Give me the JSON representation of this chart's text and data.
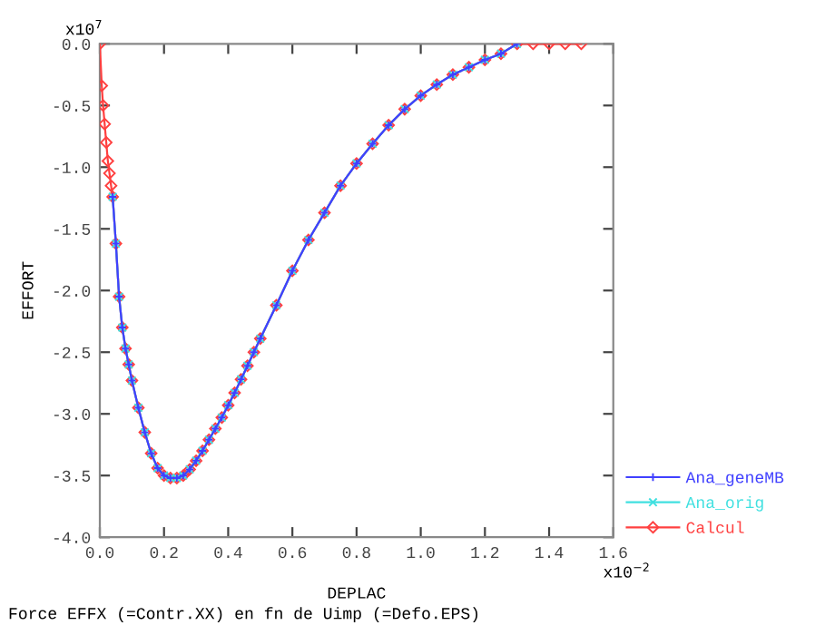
{
  "chart_data": {
    "type": "line",
    "xlabel": "DEPLAC",
    "ylabel": "EFFORT",
    "annotations": [
      "x10$^{7}$",
      "x10$^{−2}$",
      "Force EFFX (=Contr.XX) en fn de Uimp (=Defo.EPS)"
    ],
    "xlim": [
      0,
      1.6
    ],
    "xticks": [
      {
        "value": 0,
        "label": "0.0"
      },
      {
        "value": 0.2,
        "label": "0.2"
      },
      {
        "value": 0.4,
        "label": "0.4"
      },
      {
        "value": 0.6,
        "label": "0.6"
      },
      {
        "value": 0.8,
        "label": "0.8"
      },
      {
        "value": 1.0,
        "label": "1.0"
      },
      {
        "value": 1.2,
        "label": "1.2"
      },
      {
        "value": 1.4,
        "label": "1.4"
      },
      {
        "value": 1.6,
        "label": "1.6"
      }
    ],
    "ylim": [
      -4,
      0
    ],
    "yticks": [
      {
        "value": -4,
        "label": "-4.0"
      },
      {
        "value": -3.5,
        "label": "-3.5"
      },
      {
        "value": -3,
        "label": "-3.0"
      },
      {
        "value": -2.5,
        "label": "-2.5"
      },
      {
        "value": -2,
        "label": "-2.0"
      },
      {
        "value": -1.5,
        "label": "-1.5"
      },
      {
        "value": -1,
        "label": "-1.0"
      },
      {
        "value": -0.5,
        "label": "-0.5"
      },
      {
        "value": 0,
        "label": "0.0"
      }
    ],
    "grid": false,
    "legend": "right",
    "line_style": "solid",
    "series": [
      {
        "name": "Ana_geneMB",
        "color": "#4040ff",
        "marker": "cross",
        "x": [
          0.04,
          0.05,
          0.06,
          0.07,
          0.08,
          0.09,
          0.1,
          0.12,
          0.14,
          0.16,
          0.18,
          0.2,
          0.22,
          0.24,
          0.26,
          0.28,
          0.3,
          0.32,
          0.34,
          0.36,
          0.38,
          0.4,
          0.42,
          0.44,
          0.46,
          0.48,
          0.5,
          0.55,
          0.6,
          0.65,
          0.7,
          0.75,
          0.8,
          0.85,
          0.9,
          0.95,
          1.0,
          1.05,
          1.1,
          1.15,
          1.2,
          1.25,
          1.3
        ],
        "values": [
          -1.24,
          -1.62,
          -2.05,
          -2.3,
          -2.47,
          -2.6,
          -2.73,
          -2.95,
          -3.15,
          -3.32,
          -3.44,
          -3.5,
          -3.52,
          -3.52,
          -3.5,
          -3.45,
          -3.38,
          -3.3,
          -3.21,
          -3.12,
          -3.03,
          -2.93,
          -2.83,
          -2.72,
          -2.61,
          -2.5,
          -2.39,
          -2.12,
          -1.84,
          -1.59,
          -1.37,
          -1.15,
          -0.97,
          -0.81,
          -0.66,
          -0.53,
          -0.42,
          -0.33,
          -0.25,
          -0.19,
          -0.13,
          -0.08,
          0
        ]
      },
      {
        "name": "Ana_orig",
        "color": "#40e0e0",
        "marker": "x",
        "x": [
          0.04,
          0.05,
          0.06,
          0.07,
          0.08,
          0.09,
          0.1,
          0.12,
          0.14,
          0.16,
          0.18,
          0.2,
          0.22,
          0.24,
          0.26,
          0.28,
          0.3,
          0.32,
          0.34,
          0.36,
          0.38,
          0.4,
          0.42,
          0.44,
          0.46,
          0.48,
          0.5,
          0.55,
          0.6,
          0.65,
          0.7,
          0.75,
          0.8,
          0.85,
          0.9,
          0.95,
          1.0,
          1.05,
          1.1,
          1.15,
          1.2,
          1.25,
          1.3
        ],
        "values": [
          -1.24,
          -1.62,
          -2.05,
          -2.3,
          -2.47,
          -2.6,
          -2.73,
          -2.95,
          -3.15,
          -3.32,
          -3.44,
          -3.5,
          -3.52,
          -3.52,
          -3.5,
          -3.45,
          -3.38,
          -3.3,
          -3.21,
          -3.12,
          -3.03,
          -2.93,
          -2.83,
          -2.72,
          -2.61,
          -2.5,
          -2.39,
          -2.12,
          -1.84,
          -1.59,
          -1.37,
          -1.15,
          -0.97,
          -0.81,
          -0.66,
          -0.53,
          -0.42,
          -0.33,
          -0.25,
          -0.19,
          -0.13,
          -0.08,
          0
        ]
      },
      {
        "name": "Calcul",
        "color": "#ff4040",
        "marker": "diamond",
        "x": [
          0,
          0.006,
          0.01,
          0.015,
          0.02,
          0.025,
          0.03,
          0.035,
          0.04,
          0.05,
          0.06,
          0.07,
          0.08,
          0.09,
          0.1,
          0.12,
          0.14,
          0.16,
          0.18,
          0.2,
          0.22,
          0.24,
          0.26,
          0.28,
          0.3,
          0.32,
          0.34,
          0.36,
          0.38,
          0.4,
          0.42,
          0.44,
          0.46,
          0.48,
          0.5,
          0.55,
          0.6,
          0.65,
          0.7,
          0.75,
          0.8,
          0.85,
          0.9,
          0.95,
          1.0,
          1.05,
          1.1,
          1.15,
          1.2,
          1.25,
          1.3,
          1.35,
          1.4,
          1.45,
          1.5
        ],
        "values": [
          0,
          -0.34,
          -0.5,
          -0.65,
          -0.8,
          -0.95,
          -1.05,
          -1.15,
          -1.24,
          -1.62,
          -2.05,
          -2.3,
          -2.47,
          -2.6,
          -2.73,
          -2.95,
          -3.15,
          -3.32,
          -3.44,
          -3.5,
          -3.52,
          -3.52,
          -3.5,
          -3.45,
          -3.38,
          -3.3,
          -3.21,
          -3.12,
          -3.03,
          -2.93,
          -2.83,
          -2.72,
          -2.61,
          -2.5,
          -2.39,
          -2.12,
          -1.84,
          -1.59,
          -1.37,
          -1.15,
          -0.97,
          -0.81,
          -0.66,
          -0.53,
          -0.42,
          -0.33,
          -0.25,
          -0.19,
          -0.13,
          -0.08,
          0,
          0,
          0,
          0,
          0
        ]
      }
    ]
  }
}
